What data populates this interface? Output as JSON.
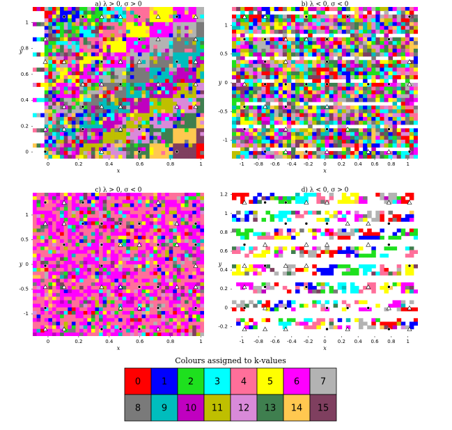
{
  "panels": [
    {
      "title": "a) λ > 0, σ > 0",
      "xlabel": "x",
      "ylabel": "y",
      "xlim": [
        -0.1,
        1.02
      ],
      "ylim": [
        -0.05,
        1.12
      ],
      "xticks": [
        0,
        0.2,
        0.4,
        0.6,
        0.8,
        1
      ],
      "yticks": [
        0,
        0.2,
        0.4,
        0.6,
        0.8,
        1
      ]
    },
    {
      "title": "b) λ < 0, σ < 0",
      "xlabel": "x",
      "ylabel": "y",
      "xlim": [
        -1.12,
        1.12
      ],
      "ylim": [
        -1.32,
        1.32
      ],
      "xticks": [
        -1,
        -0.8,
        -0.6,
        -0.4,
        -0.2,
        0,
        0.2,
        0.4,
        0.6,
        0.8,
        1
      ],
      "yticks": [
        -1,
        -0.5,
        0,
        0.5,
        1
      ]
    },
    {
      "title": "c) λ > 0, σ < 0",
      "xlabel": "x",
      "ylabel": "y",
      "xlim": [
        -0.1,
        1.02
      ],
      "ylim": [
        -1.45,
        1.45
      ],
      "xticks": [
        0,
        0.2,
        0.4,
        0.6,
        0.8,
        1
      ],
      "yticks": [
        -1,
        -0.5,
        0,
        0.5,
        1
      ]
    },
    {
      "title": "d) λ < 0, σ > 0",
      "xlabel": "x",
      "ylabel": "y",
      "xlim": [
        -1.12,
        1.12
      ],
      "ylim": [
        -0.3,
        1.22
      ],
      "xticks": [
        -1,
        -0.8,
        -0.6,
        -0.4,
        -0.2,
        0,
        0.2,
        0.4,
        0.6,
        0.8,
        1
      ],
      "yticks": [
        -0.2,
        0,
        0.2,
        0.4,
        0.6,
        0.8,
        1,
        1.2
      ]
    }
  ],
  "legend": {
    "title": "Colours assigned to k-values",
    "cells": [
      {
        "label": 0,
        "color": "#ff0000"
      },
      {
        "label": 1,
        "color": "#0000ff"
      },
      {
        "label": 2,
        "color": "#1ee01e"
      },
      {
        "label": 3,
        "color": "#00ffff"
      },
      {
        "label": 4,
        "color": "#ff6f9a"
      },
      {
        "label": 5,
        "color": "#ffff00"
      },
      {
        "label": 6,
        "color": "#ff00ff"
      },
      {
        "label": 7,
        "color": "#b3b3b3"
      },
      {
        "label": 8,
        "color": "#7a7a7a"
      },
      {
        "label": 9,
        "color": "#00bdbd"
      },
      {
        "label": 10,
        "color": "#c000c0"
      },
      {
        "label": 11,
        "color": "#bfbf00"
      },
      {
        "label": 12,
        "color": "#d98ad9"
      },
      {
        "label": 13,
        "color": "#3f7f4f"
      },
      {
        "label": 14,
        "color": "#ffc850"
      },
      {
        "label": 15,
        "color": "#7f3f5f"
      }
    ]
  }
}
